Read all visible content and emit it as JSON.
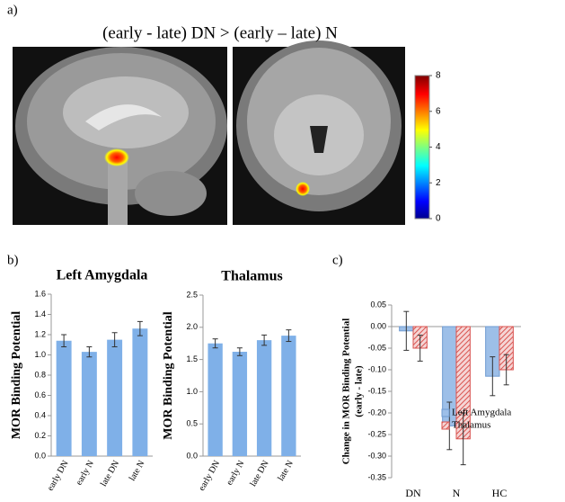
{
  "panel_labels": [
    "a)",
    "b)",
    "c)"
  ],
  "chart_data": [
    {
      "type": "colorbar",
      "title": "(early - late) DN > (early – late) N",
      "ylim": [
        0,
        8
      ],
      "yticks": [
        0,
        2,
        4,
        6,
        8
      ]
    },
    {
      "type": "bar",
      "title": "Left Amygdala",
      "y_label": "MOR Binding Potential",
      "categories": [
        "early DN",
        "early N",
        "late DN",
        "late N"
      ],
      "values": [
        1.14,
        1.03,
        1.15,
        1.26
      ],
      "errors": [
        0.06,
        0.05,
        0.07,
        0.07
      ],
      "color": "#7fb0e8",
      "ylim": [
        0,
        1.6
      ],
      "yticks": [
        {
          "value": 0,
          "label": "0.0"
        },
        0.2,
        0.4,
        0.6,
        0.8,
        {
          "value": 1,
          "label": "1.0"
        },
        1.2,
        1.4,
        1.6
      ]
    },
    {
      "type": "bar",
      "title": "Thalamus",
      "y_label": "MOR Binding Potential",
      "categories": [
        "early DN",
        "early N",
        "late DN",
        "late N"
      ],
      "values": [
        1.75,
        1.62,
        1.8,
        1.87
      ],
      "errors": [
        0.07,
        0.06,
        0.08,
        0.09
      ],
      "color": "#7fb0e8",
      "ylim": [
        0,
        2.5
      ],
      "yticks": [
        {
          "value": 0,
          "label": "0.0"
        },
        0.5,
        {
          "value": 1,
          "label": "1.0"
        },
        1.5,
        {
          "value": 2,
          "label": "2.0"
        },
        2.5
      ]
    },
    {
      "type": "bar",
      "y_label": [
        "Change in MOR Binding Potential",
        "(early - late)"
      ],
      "categories": [
        "DN",
        "N",
        "HC"
      ],
      "series": [
        {
          "name": "Left Amygdala",
          "color": "#9dbfe8",
          "values": [
            -0.01,
            -0.23,
            -0.115
          ],
          "errors": [
            0.045,
            0.055,
            0.045
          ]
        },
        {
          "name": "Thalamus",
          "color": "#d9534f",
          "values": [
            -0.05,
            -0.26,
            -0.1
          ],
          "errors": [
            0.03,
            0.06,
            0.035
          ]
        }
      ],
      "ylim": [
        -0.35,
        0.05
      ],
      "yticks": [
        0.05,
        {
          "value": 0,
          "label": "0.00"
        },
        -0.05,
        {
          "value": -0.1,
          "label": "-0.10"
        },
        -0.15,
        {
          "value": -0.2,
          "label": "-0.20"
        },
        -0.25,
        {
          "value": -0.3,
          "label": "-0.30"
        },
        -0.35
      ]
    }
  ]
}
